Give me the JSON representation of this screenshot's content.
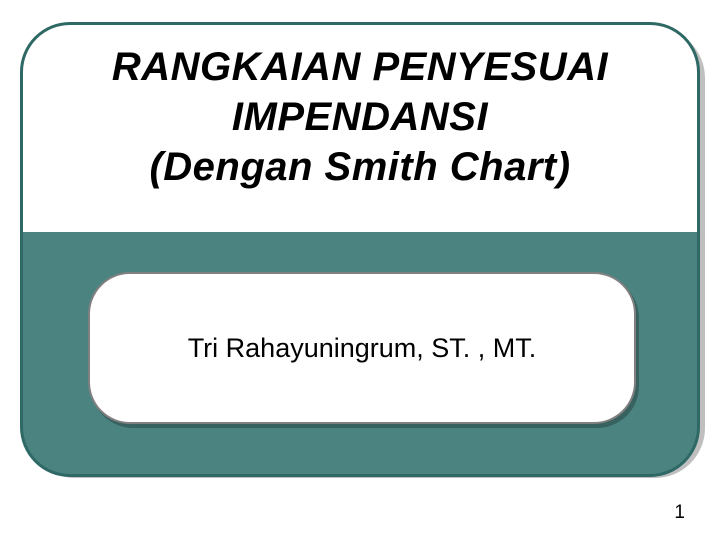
{
  "slide": {
    "title_line1": "RANGKAIAN PENYESUAI",
    "title_line2": "IMPENDANSI",
    "title_line3": "(Dengan Smith Chart)",
    "author": "Tri Rahayuningrum, ST. , MT.",
    "page_number": "1"
  },
  "style": {
    "outer_border_color": "#2e6966",
    "teal_fill": "#4a8380",
    "author_border_color": "#808080",
    "background": "#ffffff",
    "title_fontsize": 40,
    "author_fontsize": 27,
    "pagenum_fontsize": 19,
    "outer_border_radius": 50,
    "author_border_radius": 42
  }
}
